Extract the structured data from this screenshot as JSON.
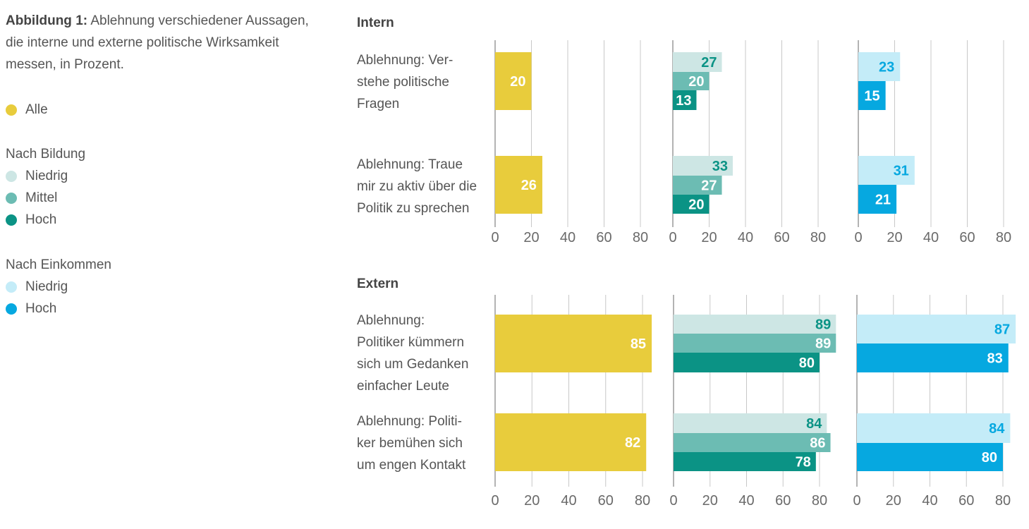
{
  "caption": {
    "bold": "Abbildung 1:",
    "text": "Ablehnung verschiedener Aussagen, die interne und externe politische Wirksamkeit messen, in Prozent."
  },
  "legend": {
    "all_label": "Alle",
    "education_title": "Nach Bildung",
    "education_items": [
      "Niedrig",
      "Mittel",
      "Hoch"
    ],
    "income_title": "Nach Einkommen",
    "income_items": [
      "Niedrig",
      "Hoch"
    ]
  },
  "colors": {
    "alle": "#e8cc3c",
    "bildung_niedrig": "#cde6e4",
    "bildung_mittel": "#6cbcb3",
    "bildung_hoch": "#0b9385",
    "einkommen_niedrig": "#c4ecf8",
    "einkommen_hoch": "#06a8e0",
    "label_teal": "#0b9385",
    "label_cyan": "#06a8e0",
    "grid": "#c8c8c8"
  },
  "chart_data": {
    "type": "bar",
    "orientation": "horizontal",
    "xlim": [
      0,
      90
    ],
    "ticks": [
      "0",
      "20",
      "40",
      "60",
      "80"
    ],
    "sections": [
      {
        "title": "Intern",
        "rows": [
          {
            "label": "Ablehnung: Ver-stehe politische Fragen",
            "label_lines": [
              "Ablehnung: Ver-",
              "stehe politische",
              "Fragen"
            ],
            "alle": 20,
            "bildung": {
              "niedrig": 27,
              "mittel": 20,
              "hoch": 13
            },
            "einkommen": {
              "niedrig": 23,
              "hoch": 15
            }
          },
          {
            "label": "Ablehnung: Traue mir zu aktiv über die Politik zu sprechen",
            "label_lines": [
              "Ablehnung: Traue",
              "mir zu aktiv über die",
              "Politik zu sprechen"
            ],
            "alle": 26,
            "bildung": {
              "niedrig": 33,
              "mittel": 27,
              "hoch": 20
            },
            "einkommen": {
              "niedrig": 31,
              "hoch": 21
            }
          }
        ]
      },
      {
        "title": "Extern",
        "rows": [
          {
            "label": "Ablehnung: Politiker kümmern sich um Gedanken einfacher Leute",
            "label_lines": [
              "Ablehnung:",
              "Politiker kümmern",
              "sich um Gedanken",
              "einfacher Leute"
            ],
            "alle": 85,
            "bildung": {
              "niedrig": 89,
              "mittel": 89,
              "hoch": 80
            },
            "einkommen": {
              "niedrig": 87,
              "hoch": 83
            }
          },
          {
            "label": "Ablehnung: Politi-ker bemühen sich um engen Kontakt",
            "label_lines": [
              "Ablehnung: Politi-",
              "ker bemühen sich",
              "um engen Kontakt"
            ],
            "alle": 82,
            "bildung": {
              "niedrig": 84,
              "mittel": 86,
              "hoch": 78
            },
            "einkommen": {
              "niedrig": 84,
              "hoch": 80
            }
          }
        ]
      }
    ]
  }
}
